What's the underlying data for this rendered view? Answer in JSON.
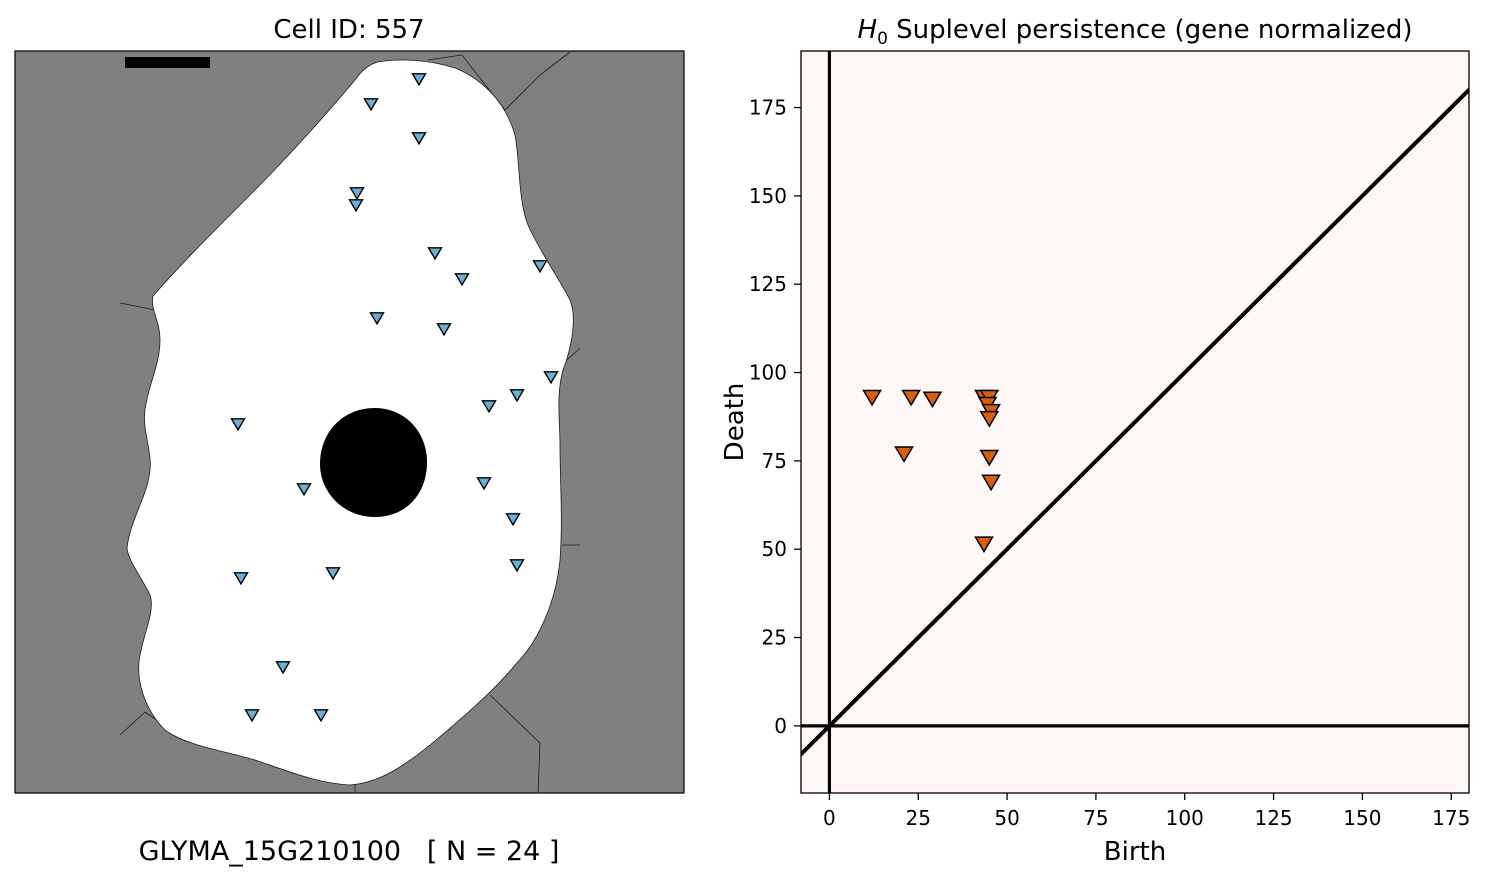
{
  "left_panel": {
    "title": "Cell ID: 557",
    "caption": "GLYMA_15G210100   [ N = 24 ]",
    "colors": {
      "background": "#808080",
      "cell": "#ffffff",
      "nucleus": "#000000",
      "marker": "#6baed6"
    },
    "marker_shape": "triangle-down-icon",
    "scale_bar": true
  },
  "chart_data": {
    "type": "scatter",
    "title_prefix": "H",
    "title_subscript": "0",
    "title_suffix": " Suplevel persistence (gene normalized)",
    "xlabel": "Birth",
    "ylabel": "Death",
    "xlim": [
      -8,
      180
    ],
    "ylim": [
      -19,
      191
    ],
    "xticks": [
      0,
      25,
      50,
      75,
      100,
      125,
      150,
      175
    ],
    "yticks": [
      0,
      25,
      50,
      75,
      100,
      125,
      150,
      175
    ],
    "marker_color": "#d95f0e",
    "background_color": "#fdf8f6",
    "diagonal": true,
    "axis_lines_at_zero": true,
    "grid": false,
    "points": [
      {
        "x": 12,
        "y": 93
      },
      {
        "x": 23,
        "y": 93
      },
      {
        "x": 29,
        "y": 92.5
      },
      {
        "x": 43.5,
        "y": 93
      },
      {
        "x": 45,
        "y": 93
      },
      {
        "x": 44.5,
        "y": 91
      },
      {
        "x": 45.5,
        "y": 89
      },
      {
        "x": 45,
        "y": 87
      },
      {
        "x": 21,
        "y": 77
      },
      {
        "x": 45,
        "y": 76
      },
      {
        "x": 45.5,
        "y": 69
      },
      {
        "x": 43.5,
        "y": 51.5
      }
    ]
  }
}
